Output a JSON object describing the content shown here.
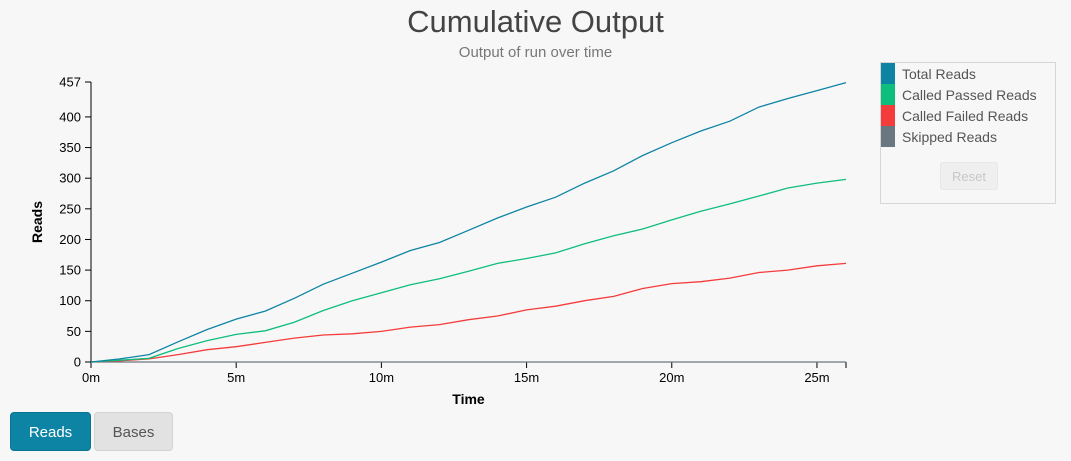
{
  "chart_data": {
    "type": "line",
    "title": "Cumulative Output",
    "subtitle": "Output of run over time",
    "xlabel": "Time",
    "ylabel": "Reads",
    "xlim": [
      0,
      26
    ],
    "ylim": [
      0,
      457
    ],
    "x_ticks": [
      0,
      5,
      10,
      15,
      20,
      25
    ],
    "x_tick_labels": [
      "0m",
      "5m",
      "10m",
      "15m",
      "20m",
      "25m"
    ],
    "y_ticks": [
      0,
      50,
      100,
      150,
      200,
      250,
      300,
      350,
      400,
      457
    ],
    "y_tick_labels": [
      "0",
      "50",
      "100",
      "150",
      "200",
      "250",
      "300",
      "350",
      "400",
      "457"
    ],
    "legend_position": "right",
    "x": [
      0,
      1,
      2,
      3,
      4,
      5,
      6,
      7,
      8,
      9,
      10,
      11,
      12,
      13,
      14,
      15,
      16,
      17,
      18,
      19,
      20,
      21,
      22,
      23,
      24,
      25,
      26
    ],
    "series": [
      {
        "name": "Total Reads",
        "color": "#0e84a5",
        "values": [
          0,
          5,
          12,
          33,
          53,
          70,
          83,
          104,
          127,
          145,
          163,
          182,
          195,
          215,
          235,
          253,
          269,
          292,
          312,
          337,
          358,
          377,
          393,
          416,
          430,
          443,
          456
        ]
      },
      {
        "name": "Called Passed Reads",
        "color": "#0ebe7c",
        "values": [
          0,
          3,
          6,
          22,
          35,
          45,
          51,
          65,
          84,
          100,
          113,
          126,
          136,
          148,
          161,
          169,
          178,
          193,
          206,
          217,
          232,
          246,
          258,
          271,
          284,
          292,
          298
        ]
      },
      {
        "name": "Called Failed Reads",
        "color": "#f43c3c",
        "values": [
          0,
          2,
          5,
          12,
          20,
          25,
          32,
          39,
          44,
          46,
          50,
          57,
          61,
          69,
          75,
          85,
          91,
          100,
          107,
          120,
          128,
          131,
          137,
          146,
          150,
          157,
          161
        ]
      },
      {
        "name": "Skipped Reads",
        "color": "#6b7780",
        "values": [
          0,
          0,
          0,
          0,
          0,
          0,
          0,
          0,
          0,
          0,
          0,
          0,
          0,
          0,
          0,
          0,
          0,
          0,
          0,
          0,
          0,
          0,
          0,
          0,
          0,
          0,
          0
        ]
      }
    ]
  },
  "legend": {
    "reset_label": "Reset"
  },
  "buttons": {
    "reads_label": "Reads",
    "bases_label": "Bases"
  }
}
